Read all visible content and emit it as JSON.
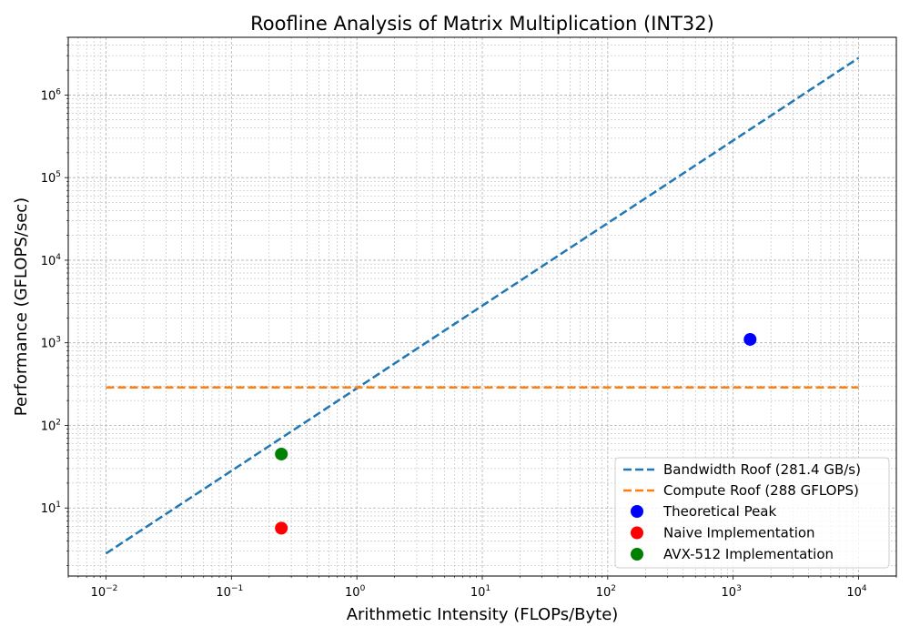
{
  "chart_data": {
    "type": "scatter",
    "title": "Roofline Analysis of Matrix Multiplication (INT32)",
    "xlabel": "Arithmetic Intensity (FLOPs/Byte)",
    "ylabel": "Performance (GFLOPS/sec)",
    "xscale": "log",
    "yscale": "log",
    "xlim": [
      0.005,
      20000
    ],
    "ylim": [
      1.5,
      5000000
    ],
    "grid": true,
    "legend_position": "lower-right",
    "x_ticks": [
      {
        "base": "10",
        "exp": "−2",
        "value": 0.01
      },
      {
        "base": "10",
        "exp": "−1",
        "value": 0.1
      },
      {
        "base": "10",
        "exp": "0",
        "value": 1
      },
      {
        "base": "10",
        "exp": "1",
        "value": 10
      },
      {
        "base": "10",
        "exp": "2",
        "value": 100
      },
      {
        "base": "10",
        "exp": "3",
        "value": 1000
      },
      {
        "base": "10",
        "exp": "4",
        "value": 10000
      }
    ],
    "y_ticks": [
      {
        "base": "10",
        "exp": "1",
        "value": 10
      },
      {
        "base": "10",
        "exp": "2",
        "value": 100
      },
      {
        "base": "10",
        "exp": "3",
        "value": 1000
      },
      {
        "base": "10",
        "exp": "4",
        "value": 10000
      },
      {
        "base": "10",
        "exp": "5",
        "value": 100000
      },
      {
        "base": "10",
        "exp": "6",
        "value": 1000000
      }
    ],
    "lines": [
      {
        "name": "Bandwidth Roof (281.4 GB/s)",
        "color": "#1f77b4",
        "style": "dashed",
        "x": [
          0.01,
          10000
        ],
        "y": [
          2.814,
          2814000
        ]
      },
      {
        "name": "Compute Roof (288 GFLOPS)",
        "color": "#ff7f0e",
        "style": "dashed",
        "x": [
          0.01,
          10000
        ],
        "y": [
          288,
          288
        ]
      }
    ],
    "points": [
      {
        "name": "Theoretical Peak",
        "color": "#0000ff",
        "x": 1365,
        "y": 1100
      },
      {
        "name": "Naive Implementation",
        "color": "#ff0000",
        "x": 0.25,
        "y": 5.7
      },
      {
        "name": "AVX-512 Implementation",
        "color": "#008000",
        "x": 0.25,
        "y": 45
      }
    ]
  }
}
